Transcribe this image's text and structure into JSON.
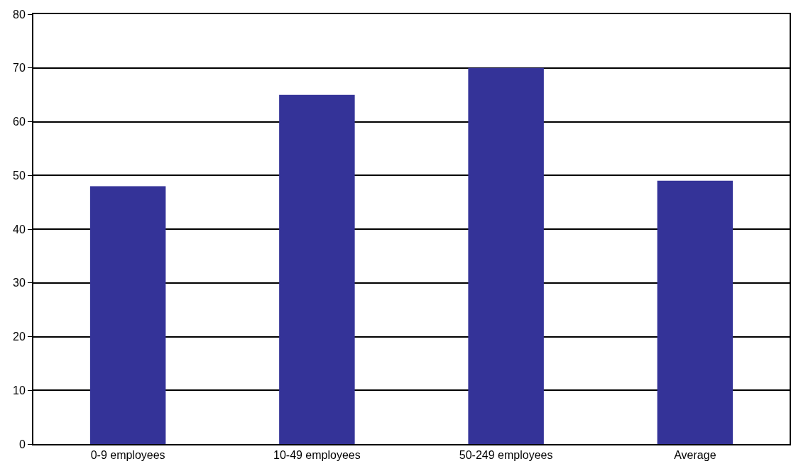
{
  "chart_data": {
    "type": "bar",
    "categories": [
      "0-9 employees",
      "10-49 employees",
      "50-249 employees",
      "Average"
    ],
    "values": [
      48,
      65,
      70,
      49
    ],
    "color": "#343398",
    "ylim": [
      0,
      80
    ],
    "yticks": [
      0,
      10,
      20,
      30,
      40,
      50,
      60,
      70,
      80
    ],
    "grid": "y"
  }
}
